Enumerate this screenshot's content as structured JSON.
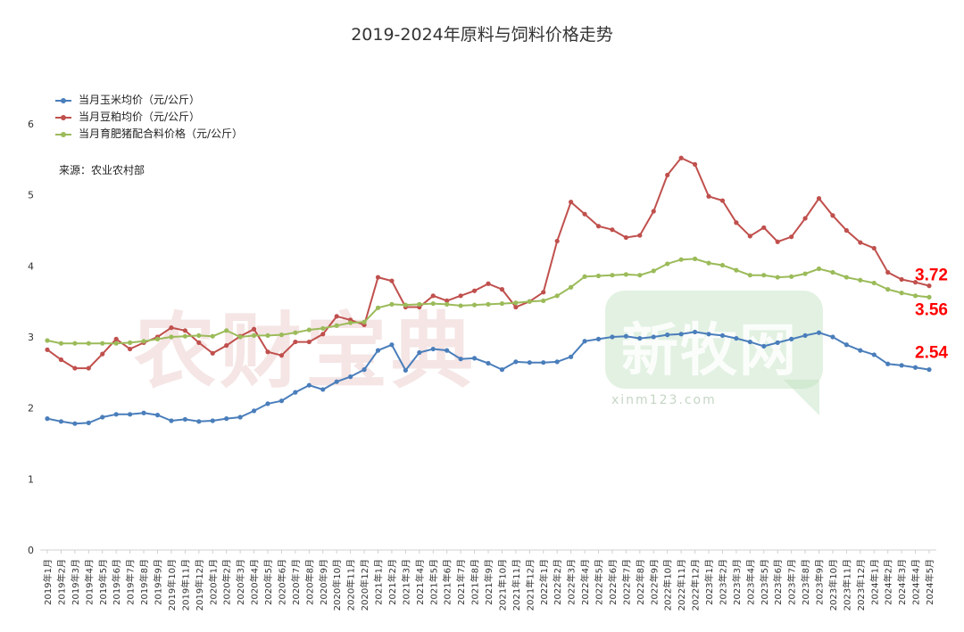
{
  "chart_data": {
    "type": "line",
    "title": "2019-2024年原料与饲料价格走势",
    "source_note": "来源：农业农村部",
    "legend_position": "top-left",
    "grid": false,
    "ylim": [
      0,
      6
    ],
    "yticks": [
      "0",
      "1",
      "2",
      "3",
      "4",
      "5",
      "6"
    ],
    "categories": [
      "2019年1月",
      "2019年2月",
      "2019年3月",
      "2019年4月",
      "2019年5月",
      "2019年6月",
      "2019年7月",
      "2019年8月",
      "2019年9月",
      "2019年10月",
      "2019年11月",
      "2019年12月",
      "2020年1月",
      "2020年2月",
      "2020年3月",
      "2020年4月",
      "2020年5月",
      "2020年6月",
      "2020年7月",
      "2020年8月",
      "2020年9月",
      "2020年10月",
      "2020年11月",
      "2020年12月",
      "2021年1月",
      "2021年2月",
      "2021年3月",
      "2021年4月",
      "2021年5月",
      "2021年6月",
      "2021年7月",
      "2021年8月",
      "2021年9月",
      "2021年10月",
      "2021年11月",
      "2021年12月",
      "2022年1月",
      "2022年2月",
      "2022年3月",
      "2022年4月",
      "2022年5月",
      "2022年6月",
      "2022年7月",
      "2022年8月",
      "2022年9月",
      "2022年10月",
      "2022年11月",
      "2022年12月",
      "2023年1月",
      "2023年2月",
      "2023年3月",
      "2023年4月",
      "2023年5月",
      "2023年6月",
      "2023年7月",
      "2023年8月",
      "2023年9月",
      "2023年10月",
      "2023年11月",
      "2023年12月",
      "2024年1月",
      "2024年2月",
      "2024年3月",
      "2024年4月",
      "2024年5月"
    ],
    "series": [
      {
        "name": "当月玉米均价（元/公斤）",
        "color": "#4a7ebb",
        "end_label": "2.54",
        "values": [
          1.85,
          1.81,
          1.78,
          1.79,
          1.87,
          1.91,
          1.91,
          1.93,
          1.9,
          1.82,
          1.84,
          1.81,
          1.82,
          1.85,
          1.87,
          1.96,
          2.06,
          2.1,
          2.22,
          2.32,
          2.26,
          2.37,
          2.44,
          2.54,
          2.81,
          2.89,
          2.53,
          2.78,
          2.83,
          2.81,
          2.69,
          2.7,
          2.63,
          2.54,
          2.65,
          2.64,
          2.64,
          2.65,
          2.72,
          2.94,
          2.97,
          3.0,
          3.01,
          2.98,
          3.0,
          3.03,
          3.04,
          3.07,
          3.04,
          3.02,
          2.98,
          2.93,
          2.87,
          2.92,
          2.97,
          3.02,
          3.06,
          3.0,
          2.89,
          2.81,
          2.75,
          2.62,
          2.6,
          2.57,
          2.54
        ]
      },
      {
        "name": "当月豆粕均价（元/公斤）",
        "color": "#c0504d",
        "end_label": "3.72",
        "values": [
          2.82,
          2.68,
          2.56,
          2.56,
          2.76,
          2.97,
          2.83,
          2.92,
          3.0,
          3.13,
          3.09,
          2.92,
          2.77,
          2.88,
          3.01,
          3.11,
          2.79,
          2.74,
          2.93,
          2.93,
          3.04,
          3.29,
          3.24,
          3.17,
          3.84,
          3.79,
          3.42,
          3.42,
          3.58,
          3.51,
          3.58,
          3.65,
          3.75,
          3.67,
          3.42,
          3.5,
          3.63,
          4.35,
          4.9,
          4.73,
          4.56,
          4.51,
          4.4,
          4.43,
          4.77,
          5.28,
          5.52,
          5.43,
          4.98,
          4.92,
          4.61,
          4.42,
          4.54,
          4.34,
          4.41,
          4.67,
          4.95,
          4.71,
          4.5,
          4.33,
          4.25,
          3.91,
          3.81,
          3.77,
          3.72
        ]
      },
      {
        "name": "当月育肥猪配合料价格（元/公斤）",
        "color": "#9bbb59",
        "end_label": "3.56",
        "values": [
          2.95,
          2.91,
          2.91,
          2.91,
          2.91,
          2.91,
          2.92,
          2.94,
          2.97,
          3.0,
          3.01,
          3.02,
          3.01,
          3.09,
          3.0,
          3.02,
          3.02,
          3.03,
          3.06,
          3.1,
          3.12,
          3.16,
          3.2,
          3.21,
          3.41,
          3.46,
          3.45,
          3.46,
          3.47,
          3.46,
          3.44,
          3.45,
          3.46,
          3.47,
          3.48,
          3.5,
          3.51,
          3.58,
          3.7,
          3.85,
          3.86,
          3.87,
          3.88,
          3.87,
          3.93,
          4.03,
          4.09,
          4.1,
          4.04,
          4.01,
          3.94,
          3.87,
          3.87,
          3.84,
          3.85,
          3.89,
          3.96,
          3.91,
          3.84,
          3.8,
          3.76,
          3.67,
          3.62,
          3.58,
          3.56
        ]
      }
    ]
  },
  "watermarks": {
    "left_text": "农财宝典",
    "right_text": "新牧网",
    "right_url": "xinm123.com"
  },
  "colors": {
    "axis": "#d0d0d0",
    "tick_text": "#333333",
    "end_label": "#ff0000"
  }
}
